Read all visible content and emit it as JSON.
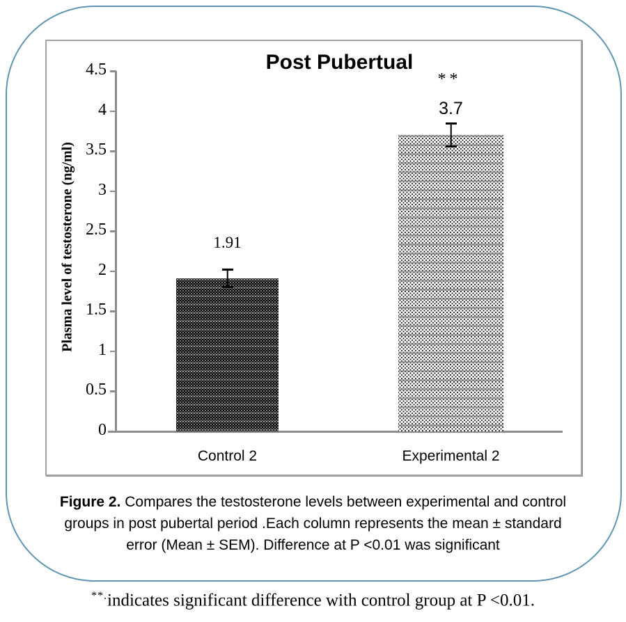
{
  "frame": {
    "border_color": "#5f95b2",
    "background": "#ffffff"
  },
  "chart_data": {
    "type": "bar",
    "title": "Post Pubertual",
    "xlabel": "",
    "ylabel": "Plasma level of testosterone (ng/ml)",
    "categories": [
      "Control 2",
      "Experimental 2"
    ],
    "values": [
      1.91,
      3.7
    ],
    "value_labels": [
      "1.91",
      "3.7"
    ],
    "errors": [
      0.12,
      0.16
    ],
    "ylim": [
      0,
      4.5
    ],
    "yticks": [
      0,
      0.5,
      1,
      1.5,
      2,
      2.5,
      3,
      3.5,
      4,
      4.5
    ],
    "ytick_labels": [
      "0",
      "0.5",
      "1",
      "1.5",
      "2",
      "2.5",
      "3",
      "3.5",
      "4",
      "4.5"
    ],
    "grid": false,
    "legend": null,
    "annotations": [
      {
        "target": "Experimental 2",
        "text": "**"
      }
    ],
    "bar_patterns": [
      "dense-dark-dots",
      "light-checker-dots"
    ],
    "axis_color": "#8c8c8c"
  },
  "caption": {
    "label": "Figure 2.",
    "line1_rest": " Compares the testosterone levels between experimental and control",
    "line2": "groups in post pubertal period .Each column represents the mean ± standard",
    "line3": "error (Mean ± SEM). Difference at P <0.01 was significant"
  },
  "footnote": {
    "superscript": "**.",
    "text": "indicates significant difference with control group at P <0.01."
  }
}
